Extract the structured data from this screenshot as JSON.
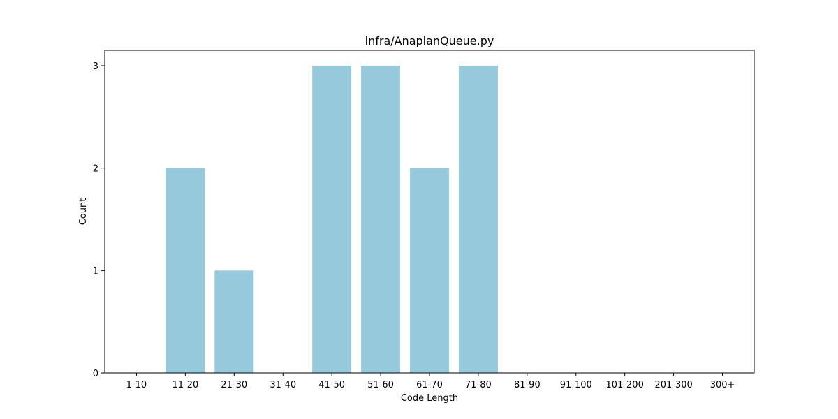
{
  "chart_data": {
    "type": "bar",
    "title": "infra/AnaplanQueue.py",
    "xlabel": "Code Length",
    "ylabel": "Count",
    "categories": [
      "1-10",
      "11-20",
      "21-30",
      "31-40",
      "41-50",
      "51-60",
      "61-70",
      "71-80",
      "81-90",
      "91-100",
      "101-200",
      "201-300",
      "300+"
    ],
    "values": [
      0,
      2,
      1,
      0,
      3,
      3,
      2,
      3,
      0,
      0,
      0,
      0,
      0
    ],
    "ylim": [
      0,
      3.15
    ],
    "yticks": [
      0,
      1,
      2,
      3
    ],
    "grid": false,
    "legend": "none",
    "bar_color": "#96c9dc"
  }
}
